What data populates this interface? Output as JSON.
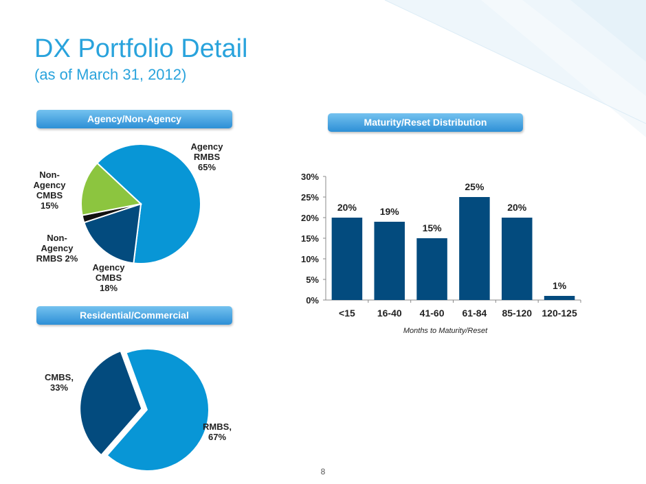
{
  "slide": {
    "title": "DX Portfolio Detail",
    "subtitle": "(as of March 31, 2012)",
    "page_number": "8",
    "colors": {
      "title": "#29a3dc",
      "bar": "#034b7e",
      "slice_blue": "#0896d6",
      "slice_dark": "#034b7e",
      "slice_green": "#8cc53f",
      "slice_black": "#111111"
    }
  },
  "sections": {
    "agency": "Agency/Non-Agency",
    "maturity": "Maturity/Reset Distribution",
    "residential": "Residential/Commercial"
  },
  "chart_data": [
    {
      "type": "pie",
      "title": "Agency/Non-Agency",
      "slices": [
        {
          "label": [
            "Agency",
            "RMBS",
            "65%"
          ],
          "value": 65,
          "color": "#0896d6"
        },
        {
          "label": [
            "Agency",
            "CMBS",
            "18%"
          ],
          "value": 18,
          "color": "#034b7e"
        },
        {
          "label": [
            "Non-",
            "Agency",
            "RMBS 2%"
          ],
          "value": 2,
          "color": "#111111"
        },
        {
          "label": [
            "Non-",
            "Agency",
            "CMBS",
            "15%"
          ],
          "value": 15,
          "color": "#8cc53f"
        }
      ]
    },
    {
      "type": "bar",
      "title": "Maturity/Reset Distribution",
      "categories": [
        "<15",
        "16-40",
        "41-60",
        "61-84",
        "85-120",
        "120-125"
      ],
      "values": [
        20,
        19,
        15,
        25,
        20,
        1
      ],
      "value_labels": [
        "20%",
        "19%",
        "15%",
        "25%",
        "20%",
        "1%"
      ],
      "xlabel": "Months to Maturity/Reset",
      "ylim": [
        0,
        30
      ],
      "yticks": [
        0,
        5,
        10,
        15,
        20,
        25,
        30
      ],
      "ytick_labels": [
        "0%",
        "5%",
        "10%",
        "15%",
        "20%",
        "25%",
        "30%"
      ],
      "grid": false
    },
    {
      "type": "pie",
      "title": "Residential/Commercial",
      "slices": [
        {
          "label": [
            "RMBS,",
            "67%"
          ],
          "value": 67,
          "color": "#0896d6"
        },
        {
          "label": [
            "CMBS,",
            "33%"
          ],
          "value": 33,
          "color": "#034b7e",
          "exploded": true
        }
      ]
    }
  ]
}
